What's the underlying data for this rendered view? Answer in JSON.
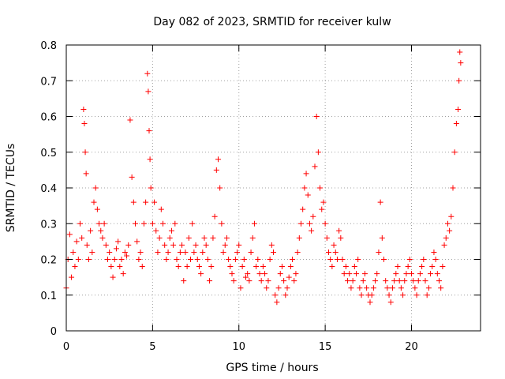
{
  "chart_data": {
    "type": "scatter",
    "title": "Day 082 of 2023, SRMTID for receiver kulw",
    "xlabel": "GPS time / hours",
    "ylabel": "SRMTID / TECUs",
    "xlim": [
      0,
      24
    ],
    "ylim": [
      0,
      0.8
    ],
    "xticks": [
      0,
      5,
      10,
      15,
      20
    ],
    "xtick_labels": [
      "0",
      "5",
      "10",
      "15",
      "20"
    ],
    "yticks": [
      0,
      0.1,
      0.2,
      0.3,
      0.4,
      0.5,
      0.6,
      0.7,
      0.8
    ],
    "ytick_labels": [
      "0",
      "0.1",
      "0.2",
      "0.3",
      "0.4",
      "0.5",
      "0.6",
      "0.7",
      "0.8"
    ],
    "grid": true,
    "marker": "+",
    "series": [
      {
        "name": "SRMTID",
        "color": "#ff0000",
        "x": [
          0.0,
          0.1,
          0.2,
          0.3,
          0.4,
          0.5,
          0.6,
          0.7,
          0.8,
          0.9,
          1.0,
          1.05,
          1.1,
          1.15,
          1.2,
          1.3,
          1.4,
          1.5,
          1.6,
          1.7,
          1.8,
          1.9,
          2.0,
          2.1,
          2.2,
          2.3,
          2.4,
          2.5,
          2.6,
          2.7,
          2.8,
          2.9,
          3.0,
          3.1,
          3.2,
          3.3,
          3.4,
          3.5,
          3.6,
          3.7,
          3.8,
          3.9,
          4.0,
          4.1,
          4.2,
          4.3,
          4.4,
          4.5,
          4.6,
          4.7,
          4.75,
          4.8,
          4.85,
          4.9,
          5.0,
          5.1,
          5.2,
          5.3,
          5.4,
          5.5,
          5.6,
          5.7,
          5.8,
          5.9,
          6.0,
          6.1,
          6.2,
          6.3,
          6.4,
          6.5,
          6.6,
          6.7,
          6.8,
          6.9,
          7.0,
          7.1,
          7.2,
          7.3,
          7.4,
          7.5,
          7.6,
          7.7,
          7.8,
          7.9,
          8.0,
          8.1,
          8.2,
          8.3,
          8.4,
          8.5,
          8.6,
          8.7,
          8.8,
          8.9,
          9.0,
          9.1,
          9.2,
          9.3,
          9.4,
          9.5,
          9.6,
          9.7,
          9.8,
          9.9,
          10.0,
          10.1,
          10.2,
          10.3,
          10.4,
          10.5,
          10.6,
          10.7,
          10.8,
          10.9,
          11.0,
          11.1,
          11.2,
          11.3,
          11.4,
          11.5,
          11.6,
          11.7,
          11.8,
          11.9,
          12.0,
          12.1,
          12.2,
          12.3,
          12.4,
          12.5,
          12.6,
          12.7,
          12.8,
          12.9,
          13.0,
          13.1,
          13.2,
          13.3,
          13.4,
          13.5,
          13.6,
          13.7,
          13.8,
          13.9,
          14.0,
          14.1,
          14.2,
          14.3,
          14.4,
          14.5,
          14.6,
          14.7,
          14.8,
          14.9,
          15.0,
          15.1,
          15.2,
          15.3,
          15.4,
          15.5,
          15.6,
          15.7,
          15.8,
          15.9,
          16.0,
          16.1,
          16.2,
          16.3,
          16.4,
          16.5,
          16.6,
          16.7,
          16.8,
          16.9,
          17.0,
          17.1,
          17.2,
          17.3,
          17.4,
          17.5,
          17.6,
          17.7,
          17.8,
          17.9,
          18.0,
          18.1,
          18.2,
          18.3,
          18.4,
          18.5,
          18.6,
          18.7,
          18.8,
          18.9,
          19.0,
          19.1,
          19.2,
          19.3,
          19.4,
          19.5,
          19.6,
          19.7,
          19.8,
          19.9,
          20.0,
          20.1,
          20.2,
          20.3,
          20.4,
          20.5,
          20.6,
          20.7,
          20.8,
          20.9,
          21.0,
          21.1,
          21.2,
          21.3,
          21.4,
          21.5,
          21.6,
          21.7,
          21.8,
          21.9,
          22.0,
          22.1,
          22.2,
          22.3,
          22.4,
          22.5,
          22.6,
          22.7,
          22.75,
          22.8,
          22.85
        ],
        "y": [
          0.12,
          0.2,
          0.27,
          0.15,
          0.22,
          0.18,
          0.25,
          0.2,
          0.3,
          0.26,
          0.62,
          0.58,
          0.5,
          0.44,
          0.24,
          0.2,
          0.28,
          0.22,
          0.36,
          0.4,
          0.34,
          0.3,
          0.28,
          0.26,
          0.3,
          0.24,
          0.2,
          0.22,
          0.18,
          0.15,
          0.2,
          0.23,
          0.25,
          0.18,
          0.2,
          0.16,
          0.22,
          0.21,
          0.24,
          0.59,
          0.43,
          0.36,
          0.3,
          0.25,
          0.2,
          0.22,
          0.18,
          0.3,
          0.36,
          0.72,
          0.67,
          0.56,
          0.48,
          0.4,
          0.3,
          0.36,
          0.28,
          0.22,
          0.26,
          0.34,
          0.3,
          0.24,
          0.2,
          0.22,
          0.26,
          0.28,
          0.24,
          0.3,
          0.2,
          0.18,
          0.22,
          0.24,
          0.14,
          0.22,
          0.18,
          0.26,
          0.2,
          0.3,
          0.22,
          0.24,
          0.2,
          0.18,
          0.16,
          0.22,
          0.26,
          0.24,
          0.2,
          0.14,
          0.18,
          0.26,
          0.32,
          0.45,
          0.48,
          0.4,
          0.3,
          0.22,
          0.24,
          0.26,
          0.2,
          0.18,
          0.16,
          0.14,
          0.2,
          0.22,
          0.24,
          0.12,
          0.18,
          0.2,
          0.15,
          0.16,
          0.14,
          0.22,
          0.26,
          0.3,
          0.18,
          0.2,
          0.16,
          0.14,
          0.18,
          0.16,
          0.12,
          0.14,
          0.2,
          0.24,
          0.22,
          0.1,
          0.08,
          0.12,
          0.16,
          0.18,
          0.14,
          0.1,
          0.12,
          0.15,
          0.18,
          0.2,
          0.14,
          0.16,
          0.22,
          0.26,
          0.3,
          0.34,
          0.4,
          0.44,
          0.38,
          0.3,
          0.28,
          0.32,
          0.46,
          0.6,
          0.5,
          0.4,
          0.34,
          0.36,
          0.3,
          0.26,
          0.22,
          0.2,
          0.18,
          0.24,
          0.22,
          0.2,
          0.28,
          0.26,
          0.2,
          0.16,
          0.18,
          0.14,
          0.16,
          0.12,
          0.14,
          0.18,
          0.16,
          0.2,
          0.12,
          0.1,
          0.14,
          0.16,
          0.12,
          0.1,
          0.08,
          0.1,
          0.12,
          0.14,
          0.16,
          0.22,
          0.36,
          0.26,
          0.2,
          0.14,
          0.12,
          0.1,
          0.08,
          0.12,
          0.14,
          0.16,
          0.18,
          0.14,
          0.12,
          0.1,
          0.14,
          0.16,
          0.18,
          0.2,
          0.16,
          0.14,
          0.12,
          0.1,
          0.14,
          0.16,
          0.18,
          0.2,
          0.14,
          0.1,
          0.12,
          0.16,
          0.18,
          0.22,
          0.2,
          0.16,
          0.14,
          0.12,
          0.18,
          0.24,
          0.26,
          0.3,
          0.28,
          0.32,
          0.4,
          0.5,
          0.58,
          0.62,
          0.7,
          0.78,
          0.75
        ]
      }
    ]
  }
}
